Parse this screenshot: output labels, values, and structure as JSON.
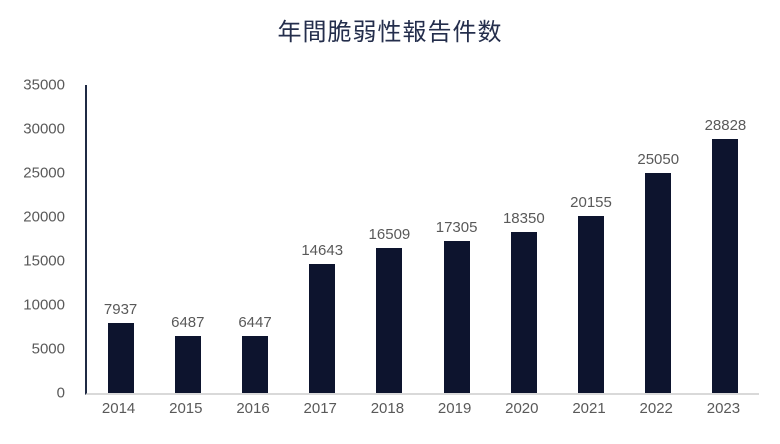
{
  "chart_data": {
    "type": "bar",
    "title": "年間脆弱性報告件数",
    "categories": [
      "2014",
      "2015",
      "2016",
      "2017",
      "2018",
      "2019",
      "2020",
      "2021",
      "2022",
      "2023"
    ],
    "values": [
      7937,
      6487,
      6447,
      14643,
      16509,
      17305,
      18350,
      20155,
      25050,
      28828
    ],
    "xlabel": "",
    "ylabel": "",
    "ylim": [
      0,
      35000
    ],
    "yticks": [
      0,
      5000,
      10000,
      15000,
      20000,
      25000,
      30000,
      35000
    ],
    "grid": false,
    "legend": false,
    "data_labels": true
  },
  "colors": {
    "bar": "#0d142e",
    "title": "#242e4c",
    "axis_label": "#595959",
    "value_label": "#595959",
    "y_axis_line": "#1f2a44",
    "baseline": "#d9d9d9",
    "background": "#ffffff"
  }
}
